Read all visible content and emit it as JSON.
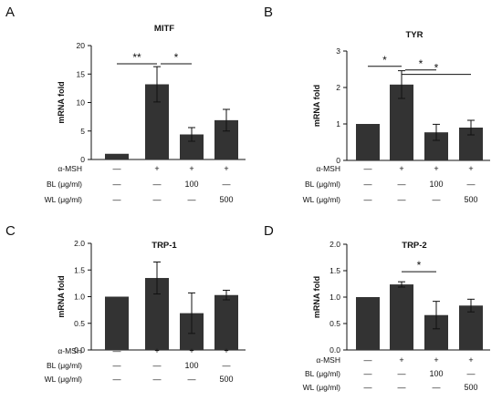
{
  "colors": {
    "bar": "#333333",
    "axis": "#111111",
    "background": "#ffffff"
  },
  "row_labels": [
    "α-MSH",
    "BL (μg/ml)",
    "WL (μg/ml)"
  ],
  "chart_data": [
    {
      "type": "bar",
      "panel": "A",
      "title": "MITF",
      "ylabel": "mRNA fold",
      "xlabel": "",
      "ylim": [
        0,
        20
      ],
      "yticks": [
        0,
        5,
        10,
        15,
        20
      ],
      "ytick_labels": [
        "0",
        "5",
        "10",
        "15",
        "20"
      ],
      "grid": false,
      "legend": "none",
      "categories": [
        [
          "—",
          "—",
          "—"
        ],
        [
          "+",
          "—",
          "—"
        ],
        [
          "+",
          "100",
          "—"
        ],
        [
          "+",
          "—",
          "500"
        ]
      ],
      "values": [
        1.0,
        13.2,
        4.4,
        6.9
      ],
      "errors": [
        0,
        3.1,
        1.2,
        1.9
      ],
      "significance": [
        {
          "from": 0,
          "to": 1,
          "label": "**",
          "y": 16.8
        },
        {
          "from": 1,
          "to": 2,
          "label": "*",
          "y": 16.8
        }
      ]
    },
    {
      "type": "bar",
      "panel": "B",
      "title": "TYR",
      "ylabel": "mRNA fold",
      "xlabel": "",
      "ylim": [
        0,
        3
      ],
      "yticks": [
        0,
        1,
        2,
        3
      ],
      "ytick_labels": [
        "0",
        "1",
        "2",
        "3"
      ],
      "grid": false,
      "legend": "none",
      "categories": [
        [
          "—",
          "—",
          "—"
        ],
        [
          "+",
          "—",
          "—"
        ],
        [
          "+",
          "100",
          "—"
        ],
        [
          "+",
          "—",
          "500"
        ]
      ],
      "values": [
        1.0,
        2.08,
        0.77,
        0.9
      ],
      "errors": [
        0,
        0.38,
        0.22,
        0.2
      ],
      "significance": [
        {
          "from": 0,
          "to": 1,
          "label": "*",
          "y": 2.58
        },
        {
          "from": 1,
          "to": 2,
          "label": "*",
          "y": 2.48
        },
        {
          "from": 1,
          "to": 3,
          "label": "*",
          "y": 2.36
        }
      ]
    },
    {
      "type": "bar",
      "panel": "C",
      "title": "TRP-1",
      "ylabel": "mRNA fold",
      "xlabel": "",
      "ylim": [
        0,
        2.0
      ],
      "yticks": [
        0,
        0.5,
        1.0,
        1.5,
        2.0
      ],
      "ytick_labels": [
        "0.0",
        "0.5",
        "1.0",
        "1.5",
        "2.0"
      ],
      "grid": false,
      "legend": "none",
      "categories": [
        [
          "—",
          "—",
          "—"
        ],
        [
          "+",
          "—",
          "—"
        ],
        [
          "+",
          "100",
          "—"
        ],
        [
          "+",
          "—",
          "500"
        ]
      ],
      "values": [
        1.0,
        1.35,
        0.69,
        1.03
      ],
      "errors": [
        0,
        0.3,
        0.38,
        0.09
      ],
      "significance": []
    },
    {
      "type": "bar",
      "panel": "D",
      "title": "TRP-2",
      "ylabel": "mRNA fold",
      "xlabel": "",
      "ylim": [
        0,
        2.0
      ],
      "yticks": [
        0,
        0.5,
        1.0,
        1.5,
        2.0
      ],
      "ytick_labels": [
        "0.0",
        "0.5",
        "1.0",
        "1.5",
        "2.0"
      ],
      "grid": false,
      "legend": "none",
      "categories": [
        [
          "—",
          "—",
          "—"
        ],
        [
          "+",
          "—",
          "—"
        ],
        [
          "+",
          "100",
          "—"
        ],
        [
          "+",
          "—",
          "500"
        ]
      ],
      "values": [
        1.0,
        1.24,
        0.66,
        0.84
      ],
      "errors": [
        0,
        0.05,
        0.26,
        0.12
      ],
      "significance": [
        {
          "from": 1,
          "to": 2,
          "label": "*",
          "y": 1.48
        }
      ]
    }
  ]
}
